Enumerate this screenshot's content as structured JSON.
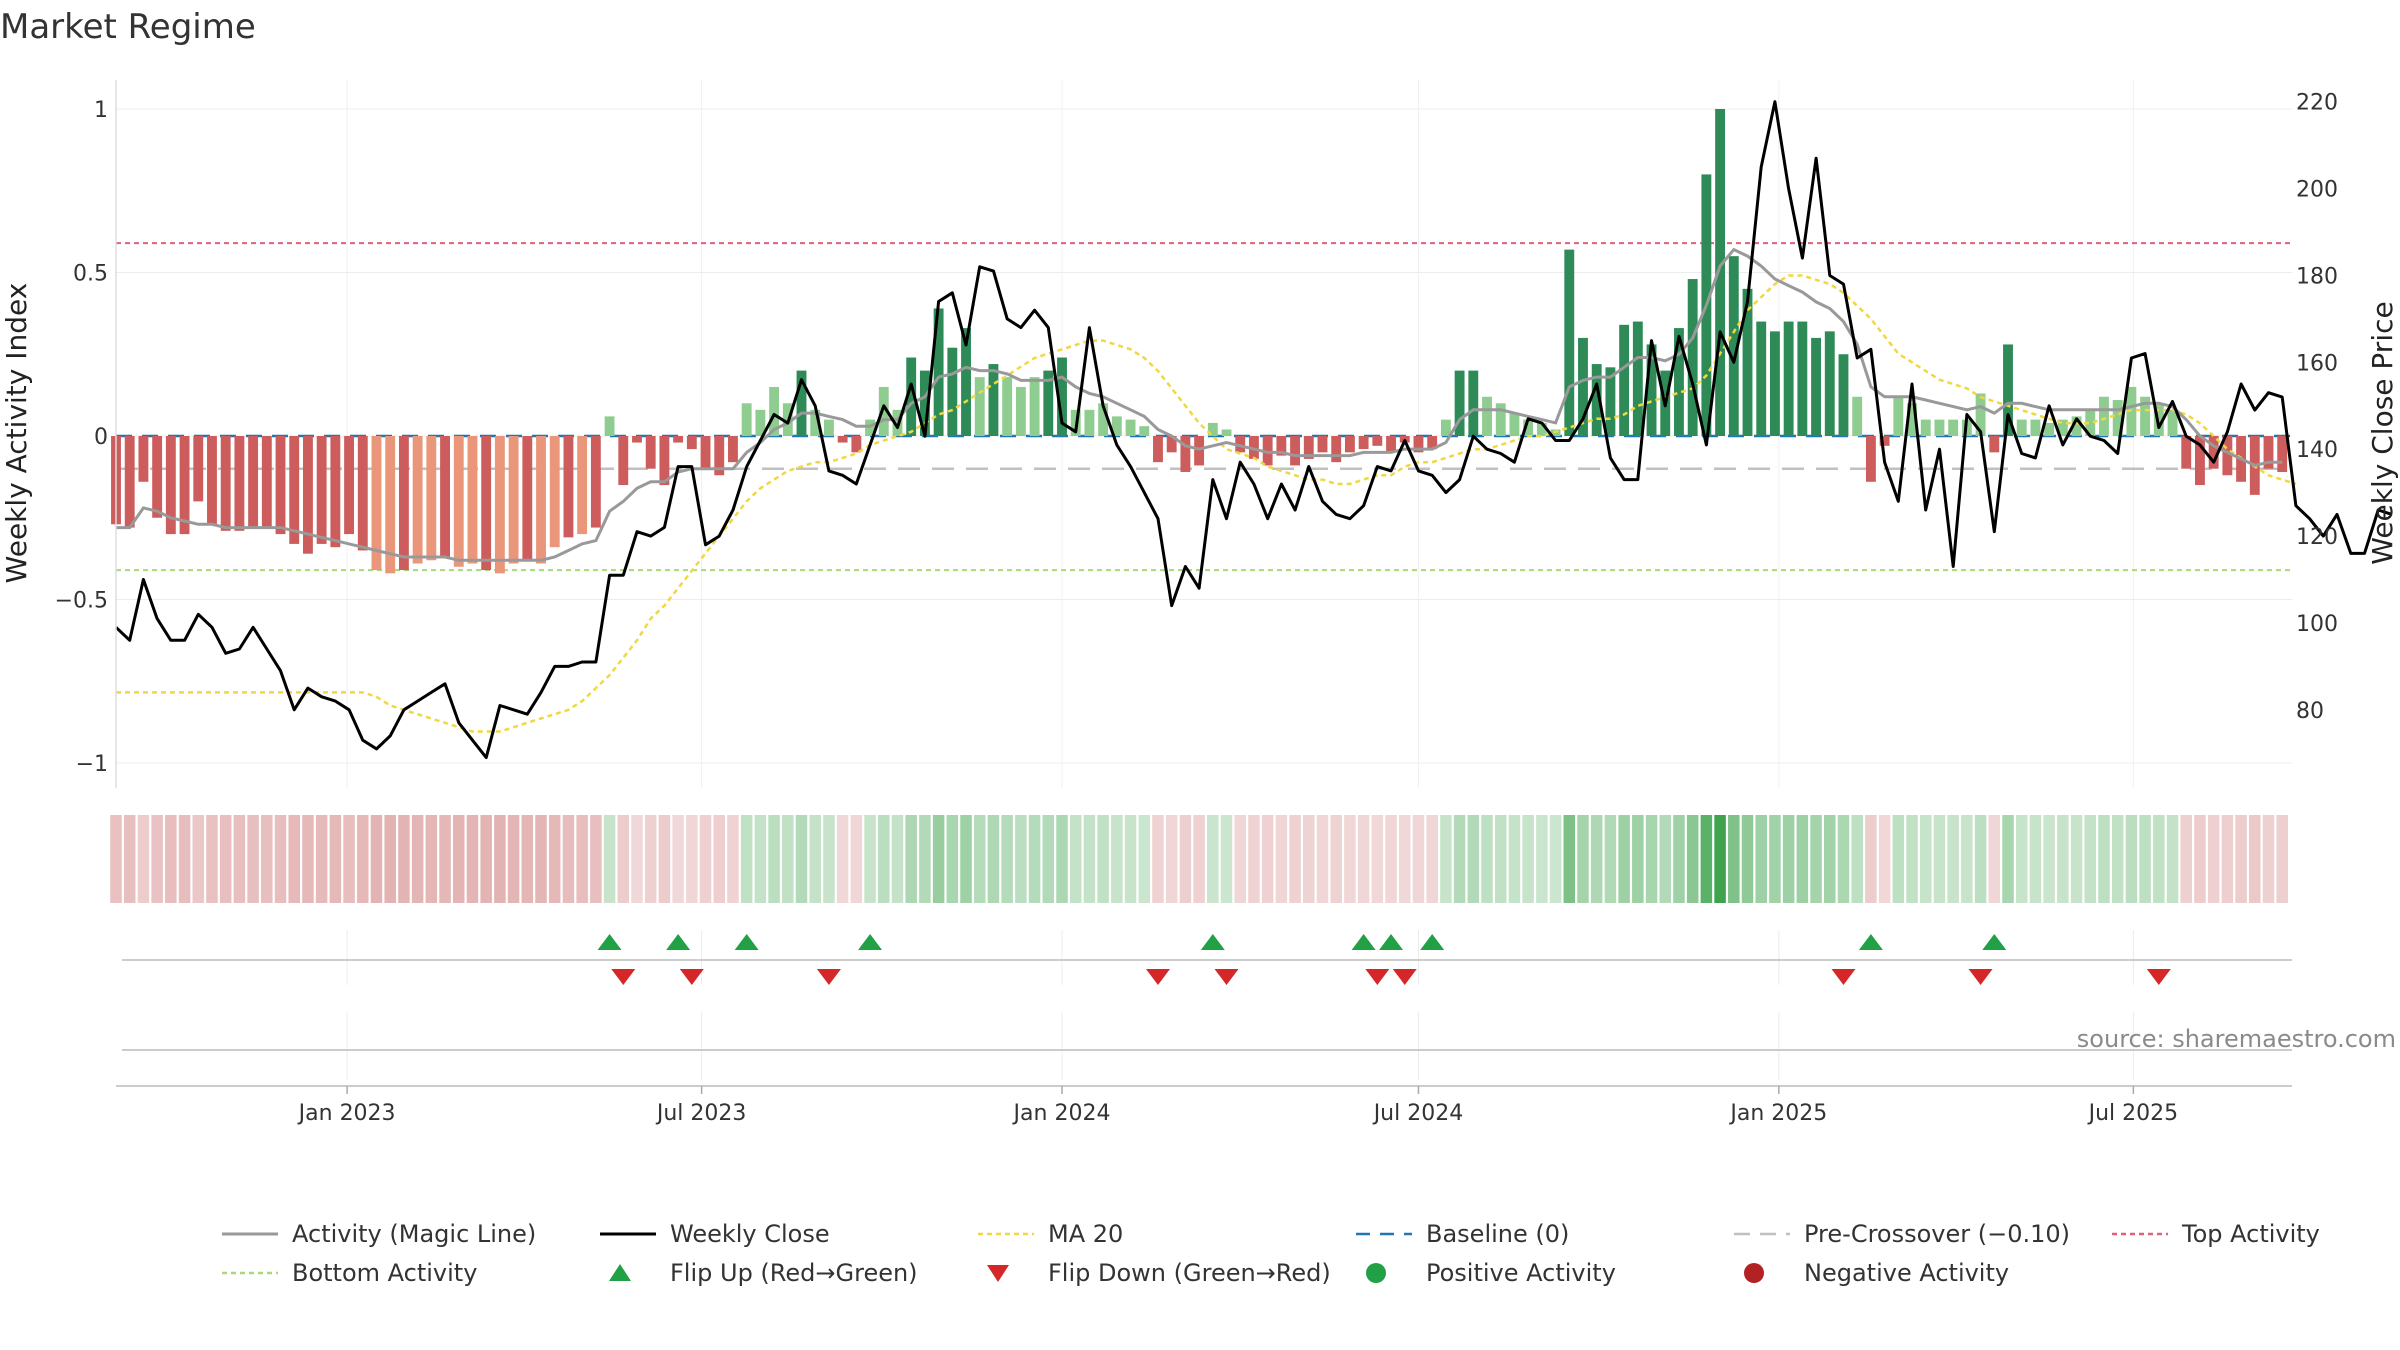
{
  "title": "Market Regime",
  "source": "source: sharemaestro.com",
  "colors": {
    "pos_dark": "#2e8b57",
    "pos_light": "#8fcc8f",
    "neg_dark": "#cd5c5c",
    "neg_light": "#e9967a",
    "magic_line": "#999999",
    "weekly_close": "#000000",
    "ma20": "#f0d840",
    "baseline": "#1f77b4",
    "pre_crossover": "#c0c0c0",
    "top_activity": "#e0607e",
    "bottom_activity": "#a8d878",
    "flip_up": "#22a045",
    "flip_down": "#d62728",
    "positive_activity": "#22a045",
    "negative_activity": "#b22222"
  },
  "chart_data": {
    "type": "bar",
    "title": "Market Regime",
    "ylabel_left": "Weekly Activity Index",
    "ylabel_right": "Weekly Close Price",
    "ylim_left": [
      -1.05,
      1.05
    ],
    "ylim_right": [
      62,
      225
    ],
    "yticks_left": [
      {
        "value": 1,
        "label": "1"
      },
      {
        "value": 0.5,
        "label": "0.5"
      },
      {
        "value": 0,
        "label": "0"
      },
      {
        "value": -0.5,
        "label": "−0.5"
      },
      {
        "value": -1,
        "label": "−1"
      }
    ],
    "yticks_right": [
      {
        "value": 220,
        "label": "220"
      },
      {
        "value": 200,
        "label": "200"
      },
      {
        "value": 180,
        "label": "180"
      },
      {
        "value": 160,
        "label": "160"
      },
      {
        "value": 140,
        "label": "140"
      },
      {
        "value": 120,
        "label": "120"
      },
      {
        "value": 100,
        "label": "100"
      },
      {
        "value": 80,
        "label": "80"
      }
    ],
    "x_range": [
      "2022-09-05",
      "2025-09-20"
    ],
    "xticks": [
      {
        "date": "2023-01-01",
        "label": "Jan 2023"
      },
      {
        "date": "2023-07-01",
        "label": "Jul 2023"
      },
      {
        "date": "2024-01-01",
        "label": "Jan 2024"
      },
      {
        "date": "2024-07-01",
        "label": "Jul 2024"
      },
      {
        "date": "2025-01-01",
        "label": "Jan 2025"
      },
      {
        "date": "2025-07-01",
        "label": "Jul 2025"
      }
    ],
    "series_start": "2022-09-05",
    "week_days": 7,
    "activity": [
      -0.27,
      -0.28,
      -0.14,
      -0.25,
      -0.3,
      -0.3,
      -0.2,
      -0.27,
      -0.29,
      -0.29,
      -0.28,
      -0.28,
      -0.3,
      -0.33,
      -0.36,
      -0.33,
      -0.34,
      -0.3,
      -0.35,
      -0.41,
      -0.42,
      -0.41,
      -0.39,
      -0.38,
      -0.37,
      -0.4,
      -0.39,
      -0.41,
      -0.42,
      -0.39,
      -0.38,
      -0.39,
      -0.34,
      -0.31,
      -0.3,
      -0.28,
      0.06,
      -0.15,
      -0.02,
      -0.1,
      -0.15,
      -0.02,
      -0.04,
      -0.1,
      -0.12,
      -0.08,
      0.1,
      0.08,
      0.15,
      0.1,
      0.2,
      0.08,
      0.05,
      -0.02,
      -0.05,
      0.05,
      0.15,
      0.08,
      0.24,
      0.2,
      0.39,
      0.27,
      0.33,
      0.18,
      0.22,
      0.18,
      0.15,
      0.18,
      0.2,
      0.24,
      0.08,
      0.08,
      0.1,
      0.06,
      0.05,
      0.03,
      -0.08,
      -0.05,
      -0.11,
      -0.09,
      0.04,
      0.02,
      -0.05,
      -0.07,
      -0.09,
      -0.06,
      -0.09,
      -0.07,
      -0.05,
      -0.08,
      -0.05,
      -0.04,
      -0.03,
      -0.05,
      -0.02,
      -0.05,
      -0.04,
      0.05,
      0.2,
      0.2,
      0.12,
      0.1,
      0.07,
      0.05,
      0.04,
      0.02,
      0.57,
      0.3,
      0.22,
      0.21,
      0.34,
      0.35,
      0.28,
      0.2,
      0.33,
      0.48,
      0.8,
      1.0,
      0.55,
      0.45,
      0.35,
      0.32,
      0.35,
      0.35,
      0.3,
      0.32,
      0.25,
      0.12,
      -0.14,
      -0.03,
      0.12,
      0.1,
      0.05,
      0.05,
      0.05,
      0.05,
      0.13,
      -0.05,
      0.28,
      0.05,
      0.05,
      0.04,
      0.05,
      0.06,
      0.08,
      0.12,
      0.11,
      0.15,
      0.12,
      0.1,
      0.08,
      -0.1,
      -0.15,
      -0.1,
      -0.12,
      -0.14,
      -0.18,
      -0.1,
      -0.11
    ],
    "magic_line": [
      -0.28,
      -0.28,
      -0.22,
      -0.23,
      -0.25,
      -0.26,
      -0.27,
      -0.27,
      -0.28,
      -0.28,
      -0.28,
      -0.28,
      -0.28,
      -0.29,
      -0.3,
      -0.31,
      -0.32,
      -0.33,
      -0.34,
      -0.35,
      -0.36,
      -0.37,
      -0.37,
      -0.37,
      -0.37,
      -0.38,
      -0.38,
      -0.38,
      -0.38,
      -0.38,
      -0.38,
      -0.38,
      -0.37,
      -0.35,
      -0.33,
      -0.32,
      -0.23,
      -0.2,
      -0.16,
      -0.14,
      -0.14,
      -0.11,
      -0.1,
      -0.1,
      -0.1,
      -0.1,
      -0.05,
      -0.02,
      0.02,
      0.04,
      0.07,
      0.07,
      0.06,
      0.05,
      0.03,
      0.03,
      0.05,
      0.05,
      0.1,
      0.12,
      0.18,
      0.19,
      0.21,
      0.2,
      0.2,
      0.19,
      0.17,
      0.17,
      0.17,
      0.18,
      0.15,
      0.13,
      0.12,
      0.1,
      0.08,
      0.06,
      0.02,
      0.0,
      -0.03,
      -0.04,
      -0.03,
      -0.02,
      -0.03,
      -0.04,
      -0.05,
      -0.05,
      -0.06,
      -0.06,
      -0.06,
      -0.06,
      -0.06,
      -0.05,
      -0.05,
      -0.05,
      -0.04,
      -0.04,
      -0.04,
      -0.02,
      0.05,
      0.08,
      0.08,
      0.08,
      0.07,
      0.06,
      0.05,
      0.04,
      0.15,
      0.17,
      0.18,
      0.18,
      0.21,
      0.24,
      0.24,
      0.23,
      0.25,
      0.3,
      0.4,
      0.52,
      0.57,
      0.55,
      0.52,
      0.48,
      0.46,
      0.44,
      0.41,
      0.39,
      0.35,
      0.28,
      0.15,
      0.12,
      0.12,
      0.12,
      0.11,
      0.1,
      0.09,
      0.08,
      0.09,
      0.07,
      0.1,
      0.1,
      0.09,
      0.08,
      0.08,
      0.08,
      0.08,
      0.08,
      0.08,
      0.09,
      0.1,
      0.1,
      0.09,
      0.05,
      0.0,
      -0.03,
      -0.05,
      -0.07,
      -0.09,
      -0.08,
      -0.08
    ],
    "weekly_close": [
      99,
      96,
      110,
      101,
      96,
      96,
      102,
      99,
      93,
      94,
      99,
      94,
      89,
      80,
      85,
      83,
      82,
      80,
      73,
      71,
      74,
      80,
      82,
      84,
      86,
      77,
      73,
      69,
      81,
      80,
      79,
      84,
      90,
      90,
      91,
      91,
      111,
      111,
      121,
      120,
      122,
      136,
      136,
      118,
      120,
      126,
      136,
      142,
      148,
      146,
      156,
      150,
      135,
      134,
      132,
      141,
      150,
      145,
      155,
      143,
      174,
      176,
      164,
      182,
      181,
      170,
      168,
      172,
      168,
      146,
      144,
      168,
      150,
      141,
      136,
      130,
      124,
      104,
      113,
      108,
      133,
      124,
      137,
      132,
      124,
      132,
      126,
      136,
      128,
      125,
      124,
      127,
      136,
      135,
      142,
      135,
      134,
      130,
      133,
      143,
      140,
      139,
      137,
      147,
      146,
      142,
      142,
      147,
      155,
      138,
      133,
      133,
      165,
      150,
      166,
      155,
      141,
      167,
      160,
      174,
      205,
      220,
      200,
      184,
      207,
      180,
      178,
      161,
      163,
      137,
      128,
      155,
      126,
      140,
      113,
      148,
      144,
      121,
      148,
      139,
      138,
      150,
      141,
      147,
      143,
      142,
      139,
      161,
      162,
      145,
      151,
      143,
      141,
      137,
      144,
      155,
      149,
      153,
      152,
      127,
      124,
      120,
      125,
      116,
      116,
      126,
      125
    ],
    "ma20": [
      84,
      84,
      84,
      84,
      84,
      84,
      84,
      84,
      84,
      84,
      84,
      84,
      84,
      84,
      84,
      84,
      84,
      84,
      84,
      83,
      81,
      80,
      79,
      78,
      77,
      76,
      75,
      75,
      75,
      76,
      77,
      78,
      79,
      80,
      82,
      85,
      88,
      92,
      96,
      101,
      104,
      108,
      112,
      116,
      120,
      124,
      128,
      131,
      133,
      135,
      136,
      137,
      137,
      138,
      139,
      141,
      142,
      143,
      144,
      146,
      148,
      149,
      151,
      153,
      155,
      157,
      159,
      161,
      162,
      163,
      164,
      165,
      165,
      164,
      163,
      161,
      158,
      154,
      150,
      146,
      143,
      140,
      139,
      138,
      136,
      135,
      134,
      133,
      133,
      132,
      132,
      133,
      134,
      134,
      136,
      137,
      137,
      138,
      139,
      140,
      140,
      141,
      142,
      143,
      143,
      144,
      145,
      146,
      147,
      147,
      148,
      150,
      151,
      152,
      153,
      154,
      157,
      162,
      167,
      172,
      175,
      178,
      180,
      180,
      179,
      178,
      176,
      173,
      170,
      166,
      162,
      160,
      158,
      156,
      155,
      154,
      152,
      151,
      150,
      149,
      148,
      147,
      146,
      146,
      146,
      147,
      148,
      149,
      149,
      149,
      149,
      148,
      146,
      143,
      140,
      138,
      136,
      134,
      133,
      132
    ],
    "top_activity": 0.59,
    "bottom_activity": -0.41,
    "pre_crossover": -0.1,
    "baseline": 0,
    "flip_up_weeks": [
      36,
      41,
      46,
      55,
      80,
      91,
      93,
      96,
      128,
      137
    ],
    "flip_down_weeks": [
      37,
      42,
      52,
      76,
      81,
      92,
      94,
      126,
      136,
      149
    ],
    "legend": [
      {
        "key": "magic_line",
        "label": "Activity (Magic Line)"
      },
      {
        "key": "weekly_close",
        "label": "Weekly Close"
      },
      {
        "key": "ma20",
        "label": "MA 20"
      },
      {
        "key": "baseline",
        "label": "Baseline (0)"
      },
      {
        "key": "pre_crossover",
        "label": "Pre-Crossover (−0.10)"
      },
      {
        "key": "top_activity",
        "label": "Top Activity"
      },
      {
        "key": "bottom_activity",
        "label": "Bottom Activity"
      },
      {
        "key": "flip_up",
        "label": "Flip Up (Red→Green)"
      },
      {
        "key": "flip_down",
        "label": "Flip Down (Green→Red)"
      },
      {
        "key": "positive_activity",
        "label": "Positive Activity"
      },
      {
        "key": "negative_activity",
        "label": "Negative Activity"
      }
    ]
  }
}
